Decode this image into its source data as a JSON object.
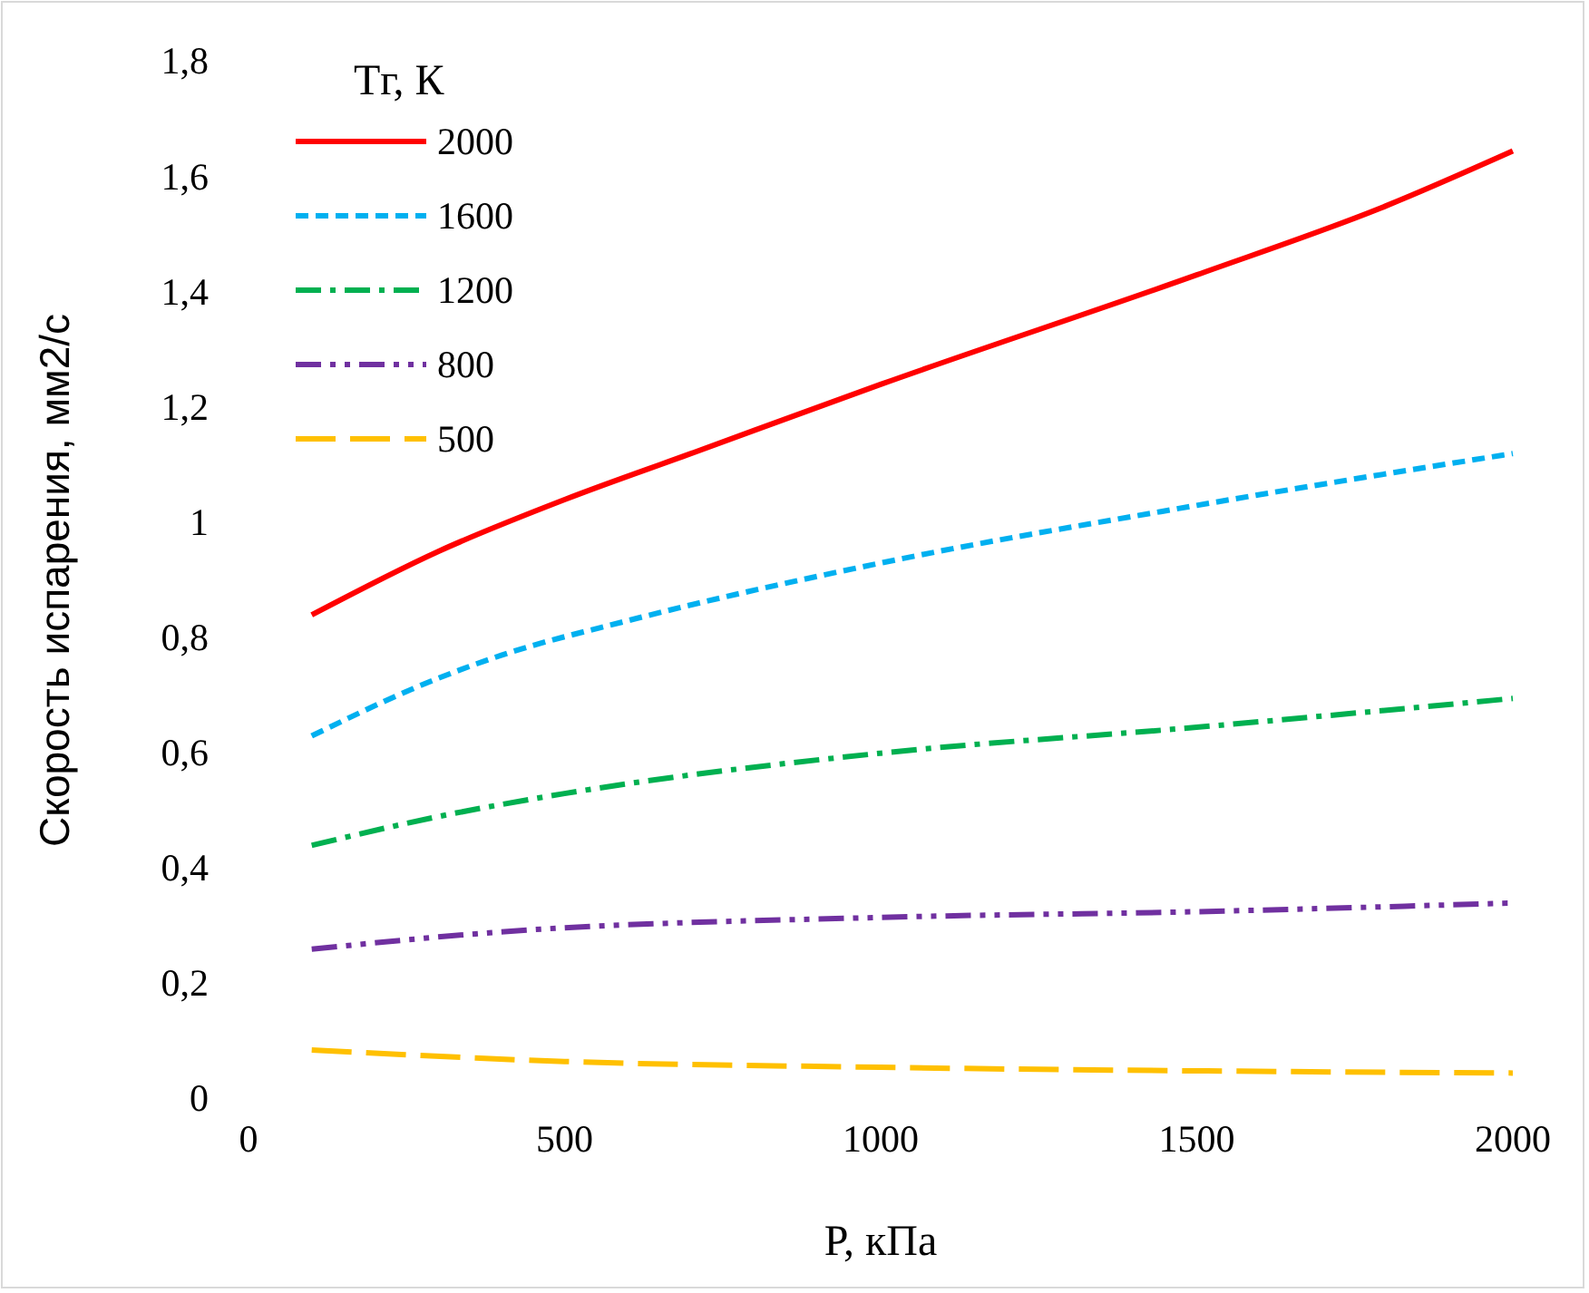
{
  "chart_data": {
    "type": "line",
    "xlabel": "P, кПа",
    "ylabel": "Скорость испарения, мм2/с",
    "legend_title": "Тг, К",
    "legend": "top left",
    "xlim": [
      0,
      2000
    ],
    "xticks": [
      0,
      500,
      1000,
      1500,
      2000
    ],
    "ylim": [
      0,
      1.8
    ],
    "yticks": [
      0,
      {
        "value": 0.2,
        "label": "0,2"
      },
      {
        "value": 0.4,
        "label": "0,4"
      },
      {
        "value": 0.6,
        "label": "0,6"
      },
      {
        "value": 0.8,
        "label": "0,8"
      },
      1,
      {
        "value": 1.2,
        "label": "1,2"
      },
      {
        "value": 1.4,
        "label": "1,4"
      },
      {
        "value": 1.6,
        "label": "1,6"
      },
      {
        "value": 1.8,
        "label": "1,8"
      }
    ],
    "grid": false,
    "series": [
      {
        "name": "2000",
        "color": "#ff0000",
        "line_style": "solid",
        "x": [
          100,
          300,
          500,
          700,
          1000,
          1500,
          1800,
          2000
        ],
        "values": [
          0.84,
          0.95,
          1.04,
          1.12,
          1.24,
          1.43,
          1.55,
          1.645
        ]
      },
      {
        "name": "1600",
        "color": "#00b0f0",
        "line_style": "dashed",
        "x": [
          100,
          300,
          400,
          600,
          1000,
          1500,
          2000
        ],
        "values": [
          0.63,
          0.73,
          0.77,
          0.83,
          0.93,
          1.03,
          1.12
        ]
      },
      {
        "name": "1200",
        "color": "#00b050",
        "line_style": "dashdot",
        "x": [
          100,
          300,
          500,
          1000,
          1500,
          2000
        ],
        "values": [
          0.44,
          0.49,
          0.53,
          0.6,
          0.645,
          0.695
        ]
      },
      {
        "name": "800",
        "color": "#7030a0",
        "line_style": "dashdotdot",
        "x": [
          100,
          400,
          1000,
          1500,
          2000
        ],
        "values": [
          0.26,
          0.29,
          0.315,
          0.325,
          0.34
        ]
      },
      {
        "name": "500",
        "color": "#ffc000",
        "line_style": "longdash",
        "x": [
          100,
          500,
          1000,
          2000
        ],
        "values": [
          0.085,
          0.065,
          0.055,
          0.045
        ]
      }
    ]
  }
}
